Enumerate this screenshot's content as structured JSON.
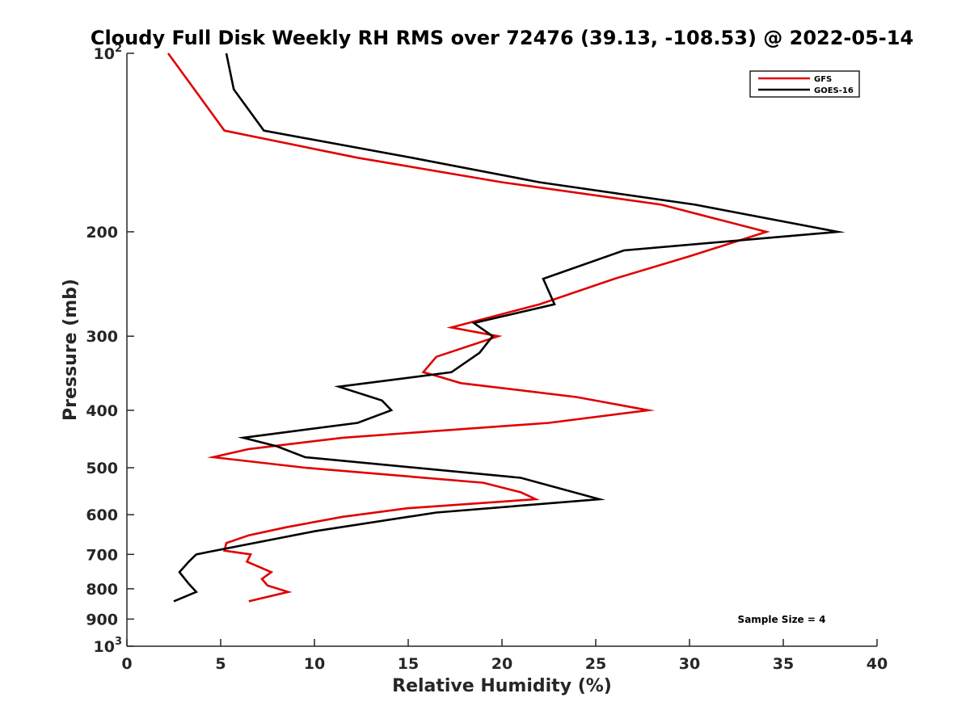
{
  "chart_data": {
    "type": "line",
    "title": "Cloudy Full Disk Weekly RH RMS over 72476 (39.13, -108.53) @ 2022-05-14",
    "xlabel": "Relative Humidity (%)",
    "ylabel": "Pressure (mb)",
    "xlim": [
      0,
      40
    ],
    "ylim": [
      100,
      1000
    ],
    "y_scale": "log",
    "y_reversed": true,
    "grid": false,
    "legend_position": "top-right",
    "x_ticks": [
      "0",
      "5",
      "10",
      "15",
      "20",
      "25",
      "30",
      "35",
      "40"
    ],
    "x_tick_values": [
      0,
      5,
      10,
      15,
      20,
      25,
      30,
      35,
      40
    ],
    "y_ticks": [
      {
        "value": 100,
        "base": "10",
        "exp": "2"
      },
      {
        "value": 200,
        "label": "200"
      },
      {
        "value": 300,
        "label": "300"
      },
      {
        "value": 400,
        "label": "400"
      },
      {
        "value": 500,
        "label": "500"
      },
      {
        "value": 600,
        "label": "600"
      },
      {
        "value": 700,
        "label": "700"
      },
      {
        "value": 800,
        "label": "800"
      },
      {
        "value": 900,
        "label": "900"
      },
      {
        "value": 1000,
        "base": "10",
        "exp": "3"
      }
    ],
    "series": [
      {
        "name": "GFS",
        "color": "#e00000",
        "points": [
          [
            2.2,
            100
          ],
          [
            3.6,
            115
          ],
          [
            5.2,
            135
          ],
          [
            12.3,
            150
          ],
          [
            20,
            165
          ],
          [
            28.5,
            180
          ],
          [
            34.1,
            200
          ],
          [
            30,
            220
          ],
          [
            26,
            240
          ],
          [
            22,
            265
          ],
          [
            17.3,
            290
          ],
          [
            19.8,
            300
          ],
          [
            16.5,
            325
          ],
          [
            15.8,
            345
          ],
          [
            16.5,
            350
          ],
          [
            17.8,
            360
          ],
          [
            24,
            380
          ],
          [
            27.8,
            400
          ],
          [
            22.5,
            420
          ],
          [
            11.5,
            445
          ],
          [
            6.5,
            465
          ],
          [
            4.6,
            480
          ],
          [
            9.5,
            500
          ],
          [
            19,
            530
          ],
          [
            21,
            550
          ],
          [
            21.8,
            565
          ],
          [
            15,
            585
          ],
          [
            11.5,
            605
          ],
          [
            8.5,
            630
          ],
          [
            6.5,
            650
          ],
          [
            5.3,
            670
          ],
          [
            5.2,
            690
          ],
          [
            6.6,
            700
          ],
          [
            6.4,
            720
          ],
          [
            7.7,
            750
          ],
          [
            7.2,
            770
          ],
          [
            7.5,
            790
          ],
          [
            8.6,
            810
          ],
          [
            6.5,
            840
          ]
        ]
      },
      {
        "name": "GOES-16",
        "color": "#000000",
        "points": [
          [
            5.3,
            100
          ],
          [
            5.7,
            115
          ],
          [
            7.3,
            135
          ],
          [
            15.2,
            150
          ],
          [
            22,
            165
          ],
          [
            30.3,
            180
          ],
          [
            37.9,
            200
          ],
          [
            26.5,
            215
          ],
          [
            22.2,
            240
          ],
          [
            22.8,
            265
          ],
          [
            18.5,
            285
          ],
          [
            19.5,
            300
          ],
          [
            18.8,
            320
          ],
          [
            17.3,
            345
          ],
          [
            11.3,
            365
          ],
          [
            13.6,
            385
          ],
          [
            14.1,
            400
          ],
          [
            12.3,
            420
          ],
          [
            6.2,
            445
          ],
          [
            8,
            460
          ],
          [
            9.5,
            480
          ],
          [
            21,
            520
          ],
          [
            25.2,
            565
          ],
          [
            16.5,
            595
          ],
          [
            10,
            640
          ],
          [
            3.7,
            700
          ],
          [
            3.3,
            720
          ],
          [
            2.8,
            750
          ],
          [
            3.3,
            785
          ],
          [
            3.7,
            810
          ],
          [
            2.5,
            840
          ]
        ]
      }
    ],
    "annotations": [
      "Sample Size = 4"
    ]
  }
}
